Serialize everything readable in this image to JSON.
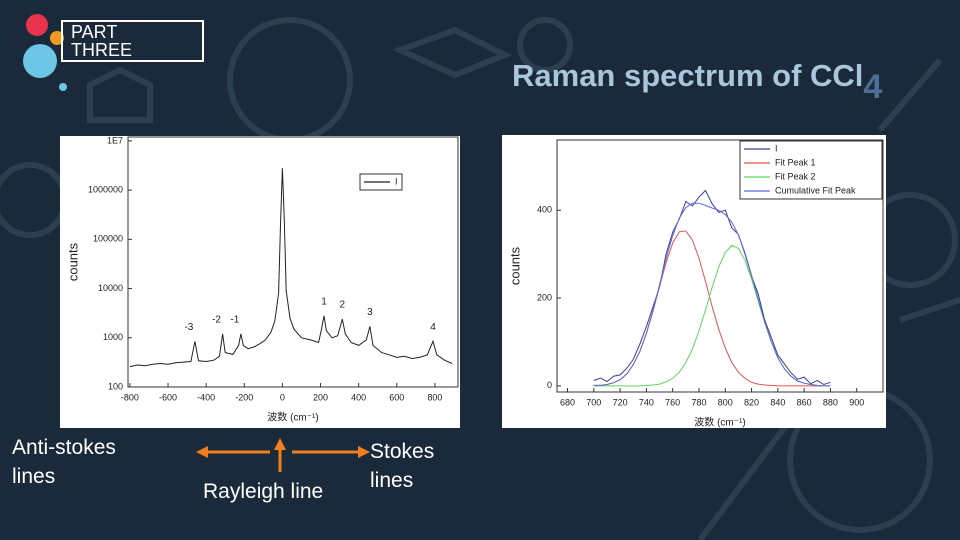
{
  "slide": {
    "section": "PART THREE",
    "title": "Raman spectrum of CCl",
    "title_subscript": "4",
    "labels": {
      "anti_stokes": "Anti-stokes lines",
      "rayleigh": "Rayleigh line",
      "stokes": "Stokes lines"
    }
  },
  "chart_data": [
    {
      "type": "line",
      "x_label": "波数 (cm⁻¹)",
      "y_label": "counts",
      "log_y": true,
      "legend": "upper right",
      "x": [
        -800,
        -760,
        -720,
        -680,
        -640,
        -600,
        -560,
        -520,
        -480,
        -459,
        -440,
        -400,
        -360,
        -330,
        -314,
        -300,
        -260,
        -230,
        -218,
        -205,
        -180,
        -150,
        -120,
        -90,
        -60,
        -40,
        -20,
        -10,
        0,
        10,
        20,
        40,
        60,
        100,
        150,
        190,
        205,
        218,
        230,
        260,
        290,
        314,
        330,
        360,
        400,
        440,
        459,
        475,
        520,
        560,
        600,
        640,
        680,
        720,
        760,
        790,
        810,
        850,
        890
      ],
      "series": [
        {
          "name": "I",
          "color": "#222222",
          "values": [
            260,
            280,
            270,
            290,
            300,
            290,
            310,
            320,
            330,
            850,
            340,
            330,
            350,
            420,
            1200,
            500,
            460,
            700,
            1200,
            700,
            600,
            650,
            750,
            900,
            1300,
            2200,
            8000,
            200000,
            2800000,
            250000,
            9000,
            2500,
            1500,
            1000,
            900,
            800,
            1500,
            2800,
            1400,
            1000,
            1100,
            2400,
            1200,
            800,
            700,
            900,
            1700,
            700,
            500,
            450,
            400,
            420,
            380,
            400,
            450,
            850,
            450,
            350,
            300
          ]
        }
      ],
      "annotations": [
        {
          "text": "-3",
          "x": -459
        },
        {
          "text": "-2",
          "x": -314
        },
        {
          "text": "-1",
          "x": -218
        },
        {
          "text": "1",
          "x": 218
        },
        {
          "text": "2",
          "x": 314
        },
        {
          "text": "3",
          "x": 459
        },
        {
          "text": "4",
          "x": 790
        }
      ],
      "xlim": [
        -810,
        921
      ],
      "ylim": [
        100,
        12000000
      ],
      "xticks": [
        -800,
        -600,
        -400,
        -200,
        0,
        200,
        400,
        600,
        800
      ],
      "yticks": [
        100,
        1000,
        10000,
        100000,
        1000000,
        {
          "value": 10000000,
          "label": "1E7"
        }
      ]
    },
    {
      "type": "line",
      "x_label": "波数 (cm⁻¹)",
      "y_label": "counts",
      "log_y": false,
      "legend": "upper right",
      "x": [
        700,
        705,
        710,
        715,
        720,
        725,
        730,
        735,
        740,
        745,
        750,
        755,
        760,
        765,
        770,
        775,
        780,
        785,
        790,
        795,
        800,
        805,
        810,
        815,
        820,
        825,
        830,
        835,
        840,
        845,
        850,
        855,
        860,
        865,
        870,
        875,
        880
      ],
      "series": [
        {
          "name": "I",
          "color": "#3a3f8f",
          "values": [
            12,
            18,
            10,
            22,
            25,
            40,
            60,
            95,
            135,
            180,
            225,
            300,
            350,
            380,
            420,
            410,
            430,
            445,
            415,
            395,
            400,
            360,
            345,
            300,
            250,
            210,
            150,
            110,
            70,
            50,
            30,
            15,
            20,
            5,
            12,
            3,
            8
          ]
        },
        {
          "name": "Fit Peak 1",
          "color": "#e0524f",
          "values": [
            1,
            1,
            3,
            7,
            14,
            27,
            48,
            78,
            119,
            170,
            226,
            281,
            325,
            351,
            353,
            332,
            291,
            238,
            181,
            129,
            86,
            53,
            31,
            17,
            8,
            4,
            2,
            1,
            0,
            0,
            0,
            0,
            0,
            0,
            0,
            0,
            0
          ]
        },
        {
          "name": "Fit Peak 2",
          "color": "#5fd35f",
          "values": [
            0,
            0,
            0,
            0,
            0,
            0,
            0,
            0,
            1,
            2,
            4,
            9,
            17,
            31,
            53,
            84,
            125,
            173,
            224,
            271,
            304,
            320,
            313,
            286,
            244,
            194,
            144,
            100,
            64,
            39,
            22,
            11,
            6,
            3,
            1,
            0,
            0
          ]
        },
        {
          "name": "Cumulative Fit Peak",
          "color": "#5a6be0",
          "values": [
            1,
            1,
            3,
            7,
            14,
            27,
            48,
            78,
            120,
            172,
            230,
            290,
            342,
            382,
            406,
            416,
            416,
            411,
            405,
            400,
            390,
            373,
            344,
            303,
            252,
            198,
            146,
            101,
            64,
            39,
            22,
            11,
            6,
            3,
            1,
            0,
            0
          ]
        }
      ],
      "xlim": [
        672,
        920
      ],
      "ylim": [
        -14,
        560
      ],
      "xticks": [
        680,
        700,
        720,
        740,
        760,
        780,
        800,
        820,
        840,
        860,
        880,
        900
      ],
      "yticks": [
        0,
        200,
        400
      ]
    }
  ]
}
